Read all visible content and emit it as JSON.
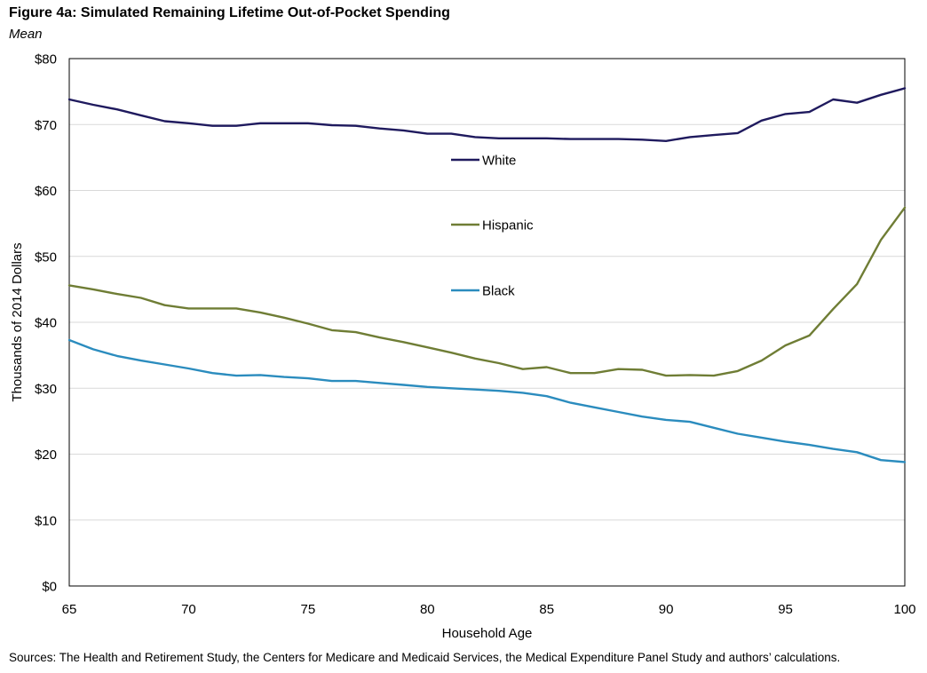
{
  "figure": {
    "title": "Figure 4a: Simulated Remaining Lifetime Out-of-Pocket Spending",
    "subtitle": "Mean",
    "source": "Sources: The Health and Retirement Study, the Centers for Medicare and Medicaid Services, the Medical Expenditure Panel Study and authors’ calculations."
  },
  "chart_data": {
    "type": "line",
    "title": "Figure 4a: Simulated Remaining Lifetime Out-of-Pocket Spending",
    "subtitle": "Mean",
    "xlabel": "Household Age",
    "ylabel": "Thousands of 2014 Dollars",
    "xlim": [
      65,
      100
    ],
    "ylim": [
      0,
      80
    ],
    "x_ticks": [
      65,
      70,
      75,
      80,
      85,
      90,
      95,
      100
    ],
    "x_tick_labels": [
      "65",
      "70",
      "75",
      "80",
      "85",
      "90",
      "95",
      "100"
    ],
    "y_ticks": [
      0,
      10,
      20,
      30,
      40,
      50,
      60,
      70,
      80
    ],
    "y_tick_labels": [
      "$0",
      "$10",
      "$20",
      "$30",
      "$40",
      "$50",
      "$60",
      "$70",
      "$80"
    ],
    "grid": true,
    "x": [
      65,
      66,
      67,
      68,
      69,
      70,
      71,
      72,
      73,
      74,
      75,
      76,
      77,
      78,
      79,
      80,
      81,
      82,
      83,
      84,
      85,
      86,
      87,
      88,
      89,
      90,
      91,
      92,
      93,
      94,
      95,
      96,
      97,
      98,
      99,
      100
    ],
    "series": [
      {
        "name": "White",
        "color": "#1f1a5e",
        "values": [
          73.8,
          73.0,
          72.3,
          71.4,
          70.5,
          70.2,
          69.8,
          69.8,
          70.2,
          70.2,
          70.2,
          69.9,
          69.8,
          69.4,
          69.1,
          68.6,
          68.6,
          68.1,
          67.9,
          67.9,
          67.9,
          67.8,
          67.8,
          67.8,
          67.7,
          67.5,
          68.1,
          68.4,
          68.7,
          70.6,
          71.6,
          71.9,
          73.8,
          73.3,
          74.5,
          75.5
        ]
      },
      {
        "name": "Hispanic",
        "color": "#6f7d35",
        "values": [
          45.6,
          45.0,
          44.3,
          43.7,
          42.6,
          42.1,
          42.1,
          42.1,
          41.5,
          40.7,
          39.8,
          38.8,
          38.5,
          37.7,
          37.0,
          36.2,
          35.4,
          34.5,
          33.8,
          32.9,
          33.2,
          32.3,
          32.3,
          32.9,
          32.8,
          31.9,
          32.0,
          31.9,
          32.6,
          34.2,
          36.5,
          38.0,
          42.0,
          45.8,
          52.5,
          57.4
        ]
      },
      {
        "name": "Black",
        "color": "#2b8cbe",
        "values": [
          37.3,
          35.9,
          34.9,
          34.2,
          33.6,
          33.0,
          32.3,
          31.9,
          32.0,
          31.7,
          31.5,
          31.1,
          31.1,
          30.8,
          30.5,
          30.2,
          30.0,
          29.8,
          29.6,
          29.3,
          28.8,
          27.8,
          27.1,
          26.4,
          25.7,
          25.2,
          24.9,
          24.0,
          23.1,
          22.5,
          21.9,
          21.4,
          20.8,
          20.3,
          19.1,
          18.8
        ]
      }
    ],
    "legend": [
      {
        "label": "White",
        "color": "#1f1a5e"
      },
      {
        "label": "Hispanic",
        "color": "#6f7d35"
      },
      {
        "label": "Black",
        "color": "#2b8cbe"
      }
    ],
    "legend_placement": "inside-center"
  }
}
